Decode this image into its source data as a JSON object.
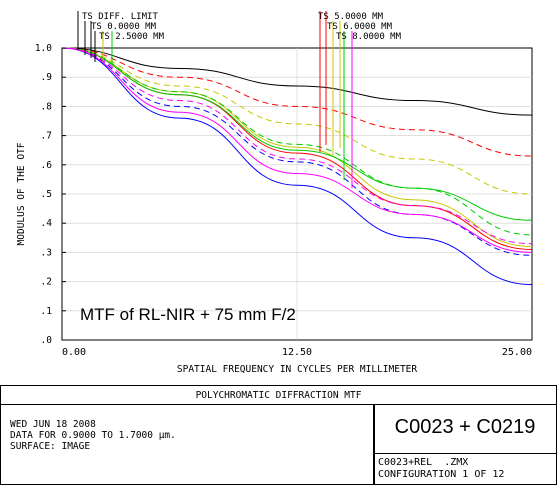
{
  "footer": {
    "plot_title": "POLYCHROMATIC DIFFRACTION MTF",
    "date": "WED JUN 18 2008",
    "data_range": "DATA FOR 0.9000 TO 1.7000 µm.",
    "surface": "SURFACE: IMAGE",
    "config_name": "C0023 + C0219",
    "file_name": "C0023+REL  .ZMX",
    "configuration": "CONFIGURATION 1 OF 12"
  },
  "chart_data": {
    "type": "line",
    "annotation": "MTF of RL-NIR + 75 mm F/2",
    "xlabel": "SPATIAL FREQUENCY IN CYCLES PER MILLIMETER",
    "ylabel": "MODULUS OF THE OTF",
    "xlim": [
      0,
      25
    ],
    "ylim": [
      0,
      1
    ],
    "x_ticks": [
      "0.00",
      "12.50",
      "25.00"
    ],
    "y_ticks": [
      "1.0",
      ".9",
      ".8",
      ".7",
      ".6",
      ".5",
      ".4",
      ".3",
      ".2",
      ".1",
      ".0"
    ],
    "legend_labels": [
      "TS DIFF. LIMIT",
      "TS 0.0000 MM",
      "TS 2.5000 MM",
      "TS 5.0000 MM",
      "TS 6.0000 MM",
      "TS 8.0000 MM"
    ],
    "series": [
      {
        "color": "#000000",
        "dash": "",
        "x": [
          0,
          6.25,
          12.5,
          18.75,
          25
        ],
        "y": [
          1.0,
          0.93,
          0.87,
          0.82,
          0.77
        ]
      },
      {
        "color": "#ff0000",
        "dash": "",
        "x": [
          0,
          6.25,
          12.5,
          18.75,
          25
        ],
        "y": [
          1.0,
          0.84,
          0.64,
          0.46,
          0.31
        ]
      },
      {
        "color": "#ff0000",
        "dash": "6,4",
        "x": [
          0,
          6.25,
          12.5,
          18.75,
          25
        ],
        "y": [
          1.0,
          0.9,
          0.8,
          0.72,
          0.63
        ]
      },
      {
        "color": "#c8c800",
        "dash": "",
        "x": [
          0,
          6.25,
          12.5,
          18.75,
          25
        ],
        "y": [
          1.0,
          0.85,
          0.66,
          0.48,
          0.32
        ]
      },
      {
        "color": "#c8c800",
        "dash": "6,4",
        "x": [
          0,
          6.25,
          12.5,
          18.75,
          25
        ],
        "y": [
          1.0,
          0.87,
          0.74,
          0.62,
          0.5
        ]
      },
      {
        "color": "#00cc00",
        "dash": "",
        "x": [
          0,
          6.25,
          12.5,
          18.75,
          25
        ],
        "y": [
          1.0,
          0.84,
          0.65,
          0.52,
          0.41
        ]
      },
      {
        "color": "#00cc00",
        "dash": "6,4",
        "x": [
          0,
          6.25,
          12.5,
          18.75,
          25
        ],
        "y": [
          1.0,
          0.85,
          0.67,
          0.52,
          0.36
        ]
      },
      {
        "color": "#0000ff",
        "dash": "",
        "x": [
          0,
          6.25,
          12.5,
          18.75,
          25
        ],
        "y": [
          1.0,
          0.76,
          0.53,
          0.35,
          0.19
        ]
      },
      {
        "color": "#0000ff",
        "dash": "6,4",
        "x": [
          0,
          6.25,
          12.5,
          18.75,
          25
        ],
        "y": [
          1.0,
          0.8,
          0.61,
          0.43,
          0.29
        ]
      },
      {
        "color": "#ff00ff",
        "dash": "",
        "x": [
          0,
          6.25,
          12.5,
          18.75,
          25
        ],
        "y": [
          1.0,
          0.78,
          0.57,
          0.43,
          0.3
        ]
      },
      {
        "color": "#ff00ff",
        "dash": "6,4",
        "x": [
          0,
          6.25,
          12.5,
          18.75,
          25
        ],
        "y": [
          1.0,
          0.82,
          0.62,
          0.46,
          0.33
        ]
      }
    ],
    "legend_markers": [
      {
        "label_index": 0,
        "colors": [
          "#000000"
        ]
      },
      {
        "label_index": 1,
        "colors": [
          "#000000",
          "#000000"
        ]
      },
      {
        "label_index": 2,
        "colors": [
          "#000000",
          "#c8c800",
          "#00cc00"
        ]
      },
      {
        "label_index": 3,
        "colors": [
          "#ff0000",
          "#ff0000"
        ]
      },
      {
        "label_index": 4,
        "colors": [
          "#c8c800",
          "#c8c800"
        ]
      },
      {
        "label_index": 5,
        "colors": [
          "#00cc00",
          "#ff00ff"
        ]
      }
    ]
  }
}
